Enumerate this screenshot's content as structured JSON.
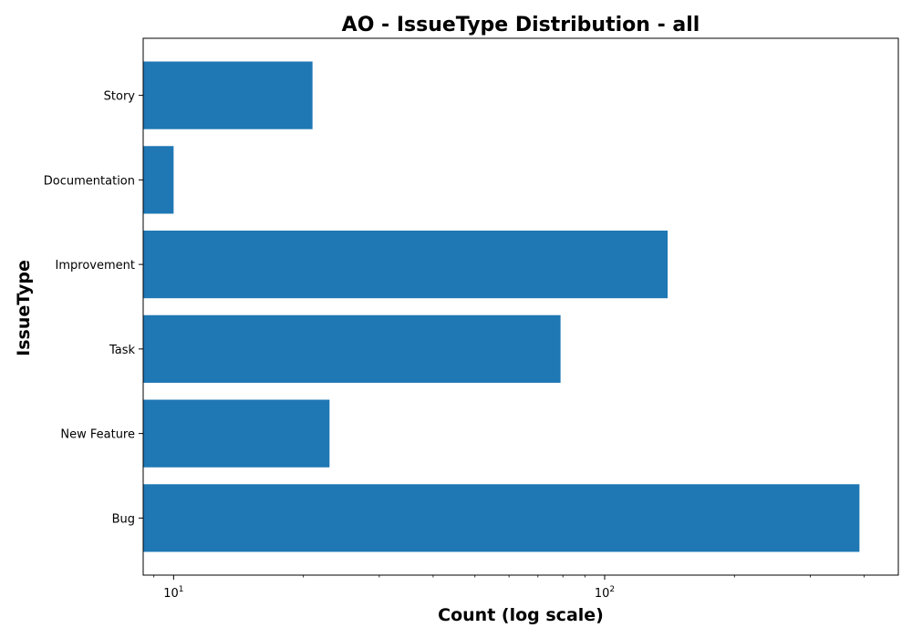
{
  "chart_data": {
    "type": "bar",
    "orientation": "horizontal",
    "title": "AO - IssueType Distribution - all",
    "xlabel": "Count (log scale)",
    "ylabel": "IssueType",
    "xscale": "log",
    "xlim": [
      8.5,
      480
    ],
    "x_ticks": [
      {
        "value": 10,
        "base": "10",
        "exp": "1"
      },
      {
        "value": 100,
        "base": "10",
        "exp": "2"
      }
    ],
    "categories": [
      "Story",
      "Documentation",
      "Improvement",
      "Task",
      "New Feature",
      "Bug"
    ],
    "values": [
      21,
      10,
      140,
      79,
      23,
      390
    ],
    "bar_color": "#1f77b4",
    "grid": false,
    "legend": "none"
  }
}
